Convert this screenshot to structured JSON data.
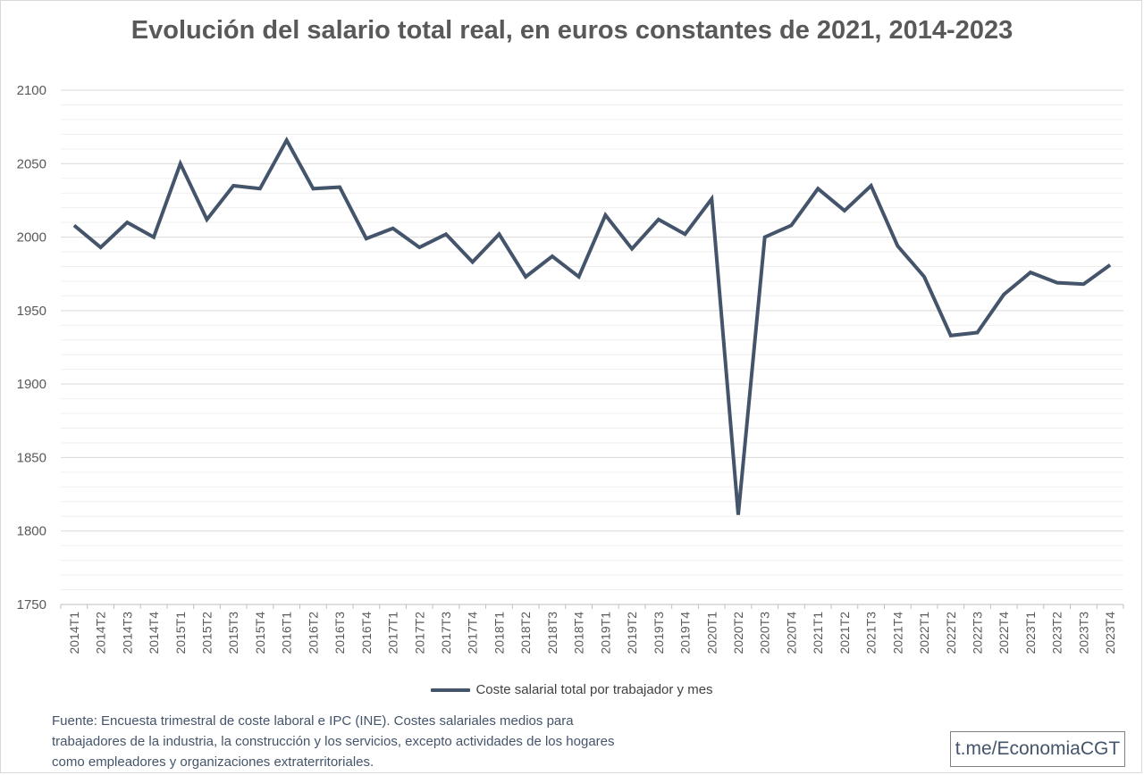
{
  "chart_data": {
    "type": "line",
    "title": "Evolución del salario total real, en euros constantes de 2021, 2014-2023",
    "xlabel": "",
    "ylabel": "",
    "ylim": [
      1750,
      2100
    ],
    "yticks": [
      1750,
      1800,
      1850,
      1900,
      1950,
      2000,
      2050,
      2100
    ],
    "grid": true,
    "legend_position": "bottom",
    "categories": [
      "2014T1",
      "2014T2",
      "2014T3",
      "2014T4",
      "2015T1",
      "2015T2",
      "2015T3",
      "2015T4",
      "2016T1",
      "2016T2",
      "2016T3",
      "2016T4",
      "2017T1",
      "2017T2",
      "2017T3",
      "2017T4",
      "2018T1",
      "2018T2",
      "2018T3",
      "2018T4",
      "2019T1",
      "2019T2",
      "2019T3",
      "2019T4",
      "2020T1",
      "2020T2",
      "2020T3",
      "2020T4",
      "2021T1",
      "2021T2",
      "2021T3",
      "2021T4",
      "2022T1",
      "2022T2",
      "2022T3",
      "2022T4",
      "2023T1",
      "2023T2",
      "2023T3",
      "2023T4"
    ],
    "series": [
      {
        "name": "Coste salarial total por trabajador y mes",
        "color": "#44546a",
        "values": [
          2008,
          1993,
          2010,
          2000,
          2050,
          2012,
          2035,
          2033,
          2066,
          2033,
          2034,
          1999,
          2006,
          1993,
          2002,
          1983,
          2002,
          1973,
          1987,
          1973,
          2015,
          1992,
          2012,
          2002,
          2026,
          1811,
          2000,
          2008,
          2033,
          2018,
          2035,
          1994,
          1973,
          1933,
          1935,
          1961,
          1976,
          1969,
          1968,
          1981
        ]
      }
    ]
  },
  "source": {
    "line1": "Fuente: Encuesta trimestral de coste laboral e IPC (INE). Costes salariales medios para",
    "line2": "trabajadores de la industria, la construcción y los servicios, excepto actividades de los hogares",
    "line3": "como empleadores y organizaciones extraterritoriales."
  },
  "handle": "t.me/EconomiaCGT"
}
